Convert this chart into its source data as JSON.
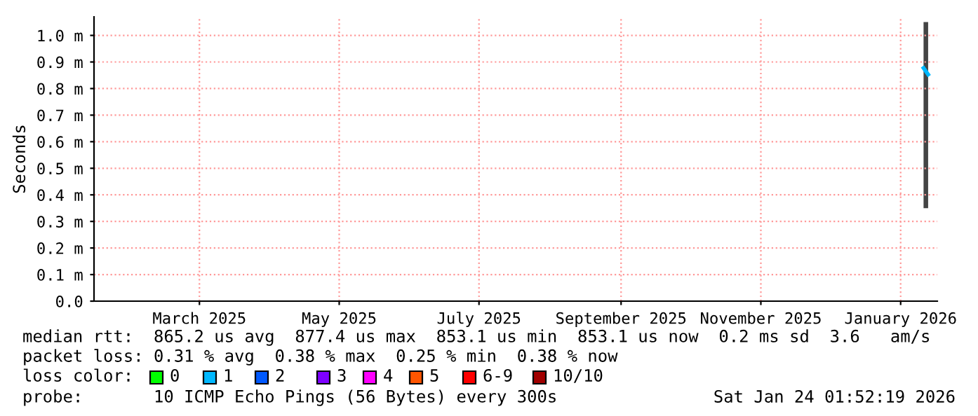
{
  "chart_data": {
    "type": "line",
    "ylabel": "Seconds",
    "x": [
      "2026-01-11",
      "2026-01-13"
    ],
    "series": [
      {
        "color": "#00b8ff",
        "values": [
          0.877,
          0.853
        ],
        "lower": [
          0.35,
          0.35
        ],
        "upper": [
          1.05,
          1.05
        ]
      }
    ],
    "xlim": [
      "2025-01-14",
      "2026-01-17"
    ],
    "xticks": [
      {
        "value": "2025-03-01",
        "label": "March 2025"
      },
      {
        "value": "2025-05-01",
        "label": "May 2025"
      },
      {
        "value": "2025-07-01",
        "label": "July 2025"
      },
      {
        "value": "2025-09-01",
        "label": "September 2025"
      },
      {
        "value": "2025-11-01",
        "label": "November 2025"
      },
      {
        "value": "2026-01-01",
        "label": "January 2026"
      }
    ],
    "ylim": [
      0,
      1.07
    ],
    "yticks": [
      {
        "value": 0,
        "label": "0.0"
      },
      {
        "value": 0.1,
        "label": "0.1 m"
      },
      {
        "value": 0.2,
        "label": "0.2 m"
      },
      {
        "value": 0.3,
        "label": "0.3 m"
      },
      {
        "value": 0.4,
        "label": "0.4 m"
      },
      {
        "value": 0.5,
        "label": "0.5 m"
      },
      {
        "value": 0.6,
        "label": "0.6 m"
      },
      {
        "value": 0.7,
        "label": "0.7 m"
      },
      {
        "value": 0.8,
        "label": "0.8 m"
      },
      {
        "value": 0.9,
        "label": "0.9 m"
      },
      {
        "value": 1.0,
        "label": "1.0 m"
      }
    ],
    "grid": true,
    "annotations": [
      "median rtt:  865.2 us avg  877.4 us max  853.1 us min  853.1 us now  0.2 ms sd  3.6   am/s",
      "packet loss: 0.31 % avg  0.38 % max  0.25 % min  0.38 % now",
      "loss color:",
      "0",
      "1",
      "2",
      "3",
      "4",
      "5",
      "6-9",
      "10/10",
      "probe:       10 ICMP Echo Pings (56 Bytes) every 300s",
      "Sat Jan 24 01:52:19 2026"
    ]
  }
}
